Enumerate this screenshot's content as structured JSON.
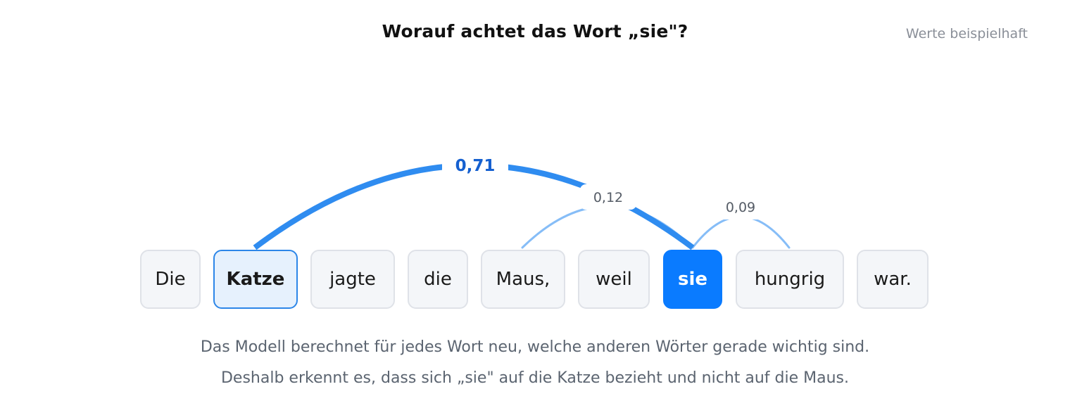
{
  "title": "Worauf achtet das Wort „sie\"?",
  "note": "Werte beispielhaft",
  "tokens": [
    "Die",
    "Katze",
    "jagte",
    "die",
    "Maus,",
    "weil",
    "sie",
    "hungrig",
    "war."
  ],
  "attention": {
    "source": "sie",
    "links": [
      {
        "target": "Katze",
        "weight": "0,71"
      },
      {
        "target": "Maus,",
        "weight": "0,12"
      },
      {
        "target": "hungrig",
        "weight": "0,09"
      }
    ]
  },
  "caption": {
    "line1": "Das Modell berechnet für jedes Wort neu, welche anderen Wörter gerade wichtig sind.",
    "line2": "Deshalb erkennt es, dass sich „sie\" auf die Katze bezieht und nicht auf die Maus."
  },
  "colors": {
    "strong": "#2f8cf0",
    "weak": "#86bdf7",
    "label_strong": "#1560d0",
    "label_weak": "#555c66"
  }
}
